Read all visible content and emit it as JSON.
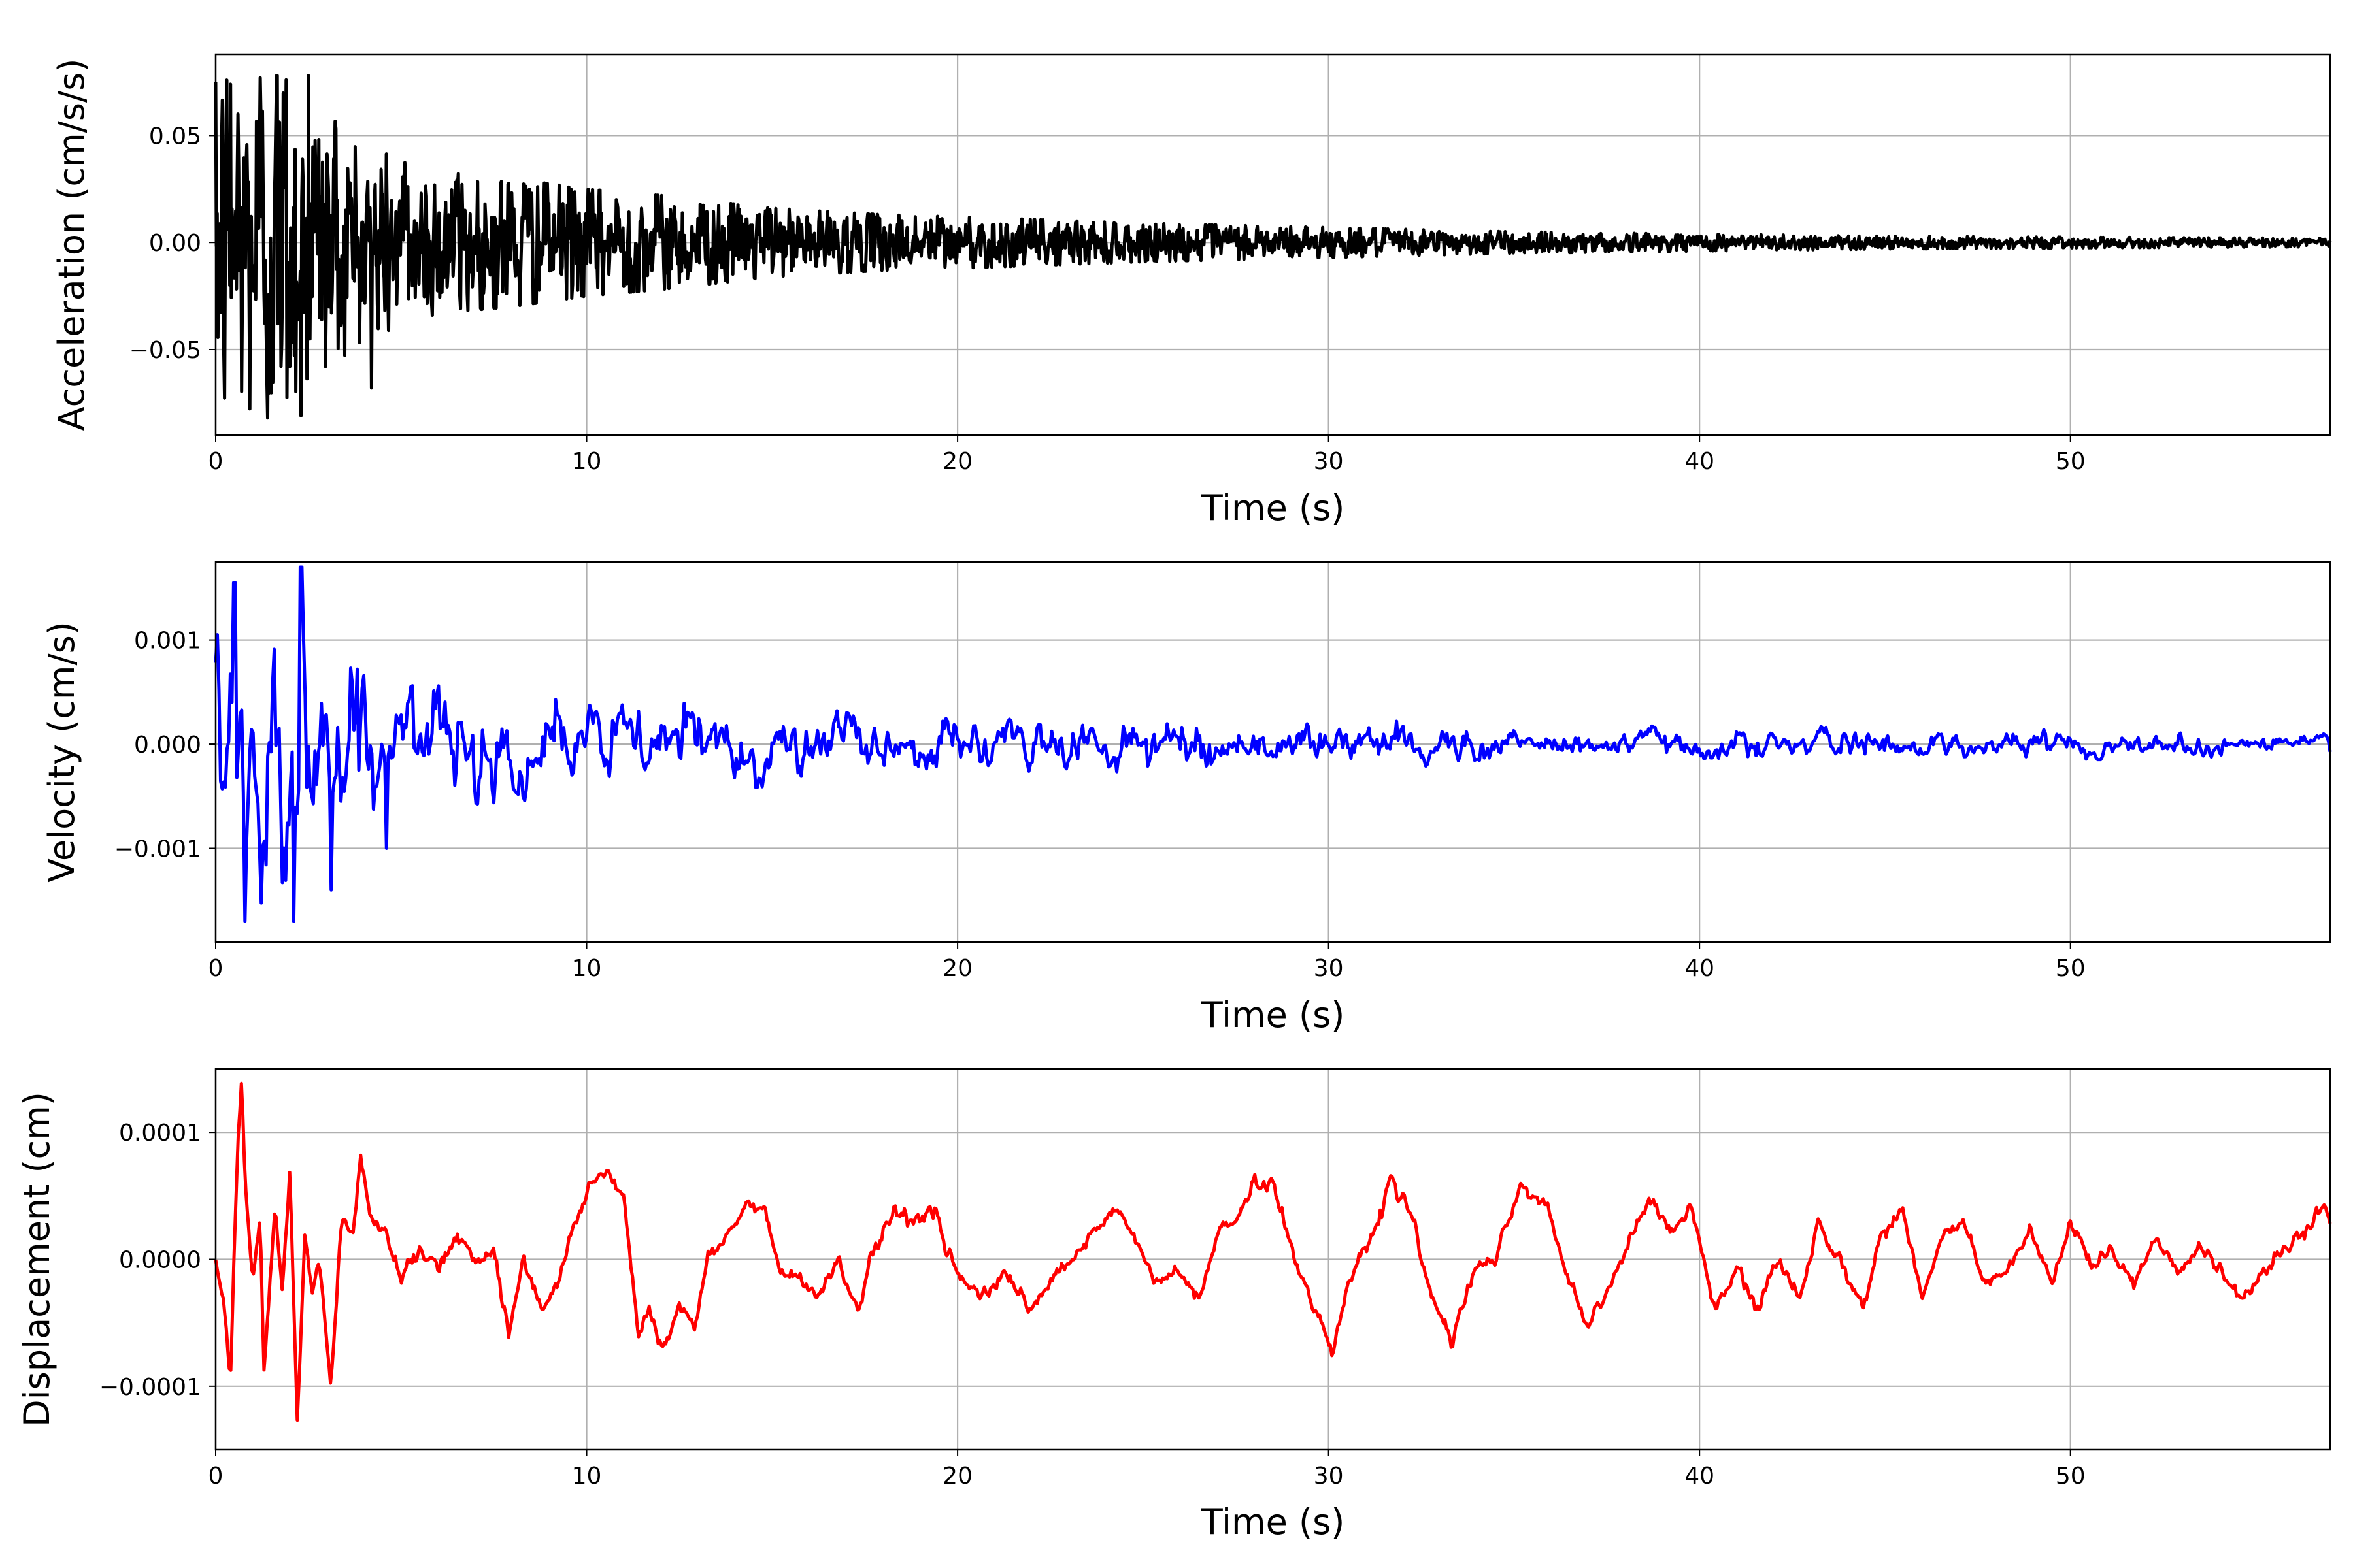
{
  "chart_data": [
    {
      "type": "line",
      "xlabel": "Time (s)",
      "ylabel": "Acceleration (cm/s/s)",
      "xlim": [
        0,
        57
      ],
      "ylim": [
        -0.09,
        0.088
      ],
      "xticks": [
        0,
        10,
        20,
        30,
        40,
        50
      ],
      "xtick_labels": [
        "0",
        "10",
        "20",
        "30",
        "40",
        "50"
      ],
      "yticks": [
        0.05,
        0.0,
        -0.05
      ],
      "ytick_labels": [
        "0.05",
        "0.00",
        "−0.05"
      ],
      "grid": true,
      "color": "#000000",
      "envelope": [
        [
          0,
          0.075
        ],
        [
          1,
          0.078
        ],
        [
          2,
          0.078
        ],
        [
          3,
          0.06
        ],
        [
          4,
          0.045
        ],
        [
          6,
          0.033
        ],
        [
          8,
          0.03
        ],
        [
          10,
          0.025
        ],
        [
          12,
          0.022
        ],
        [
          15,
          0.016
        ],
        [
          18,
          0.013
        ],
        [
          20,
          0.012
        ],
        [
          25,
          0.009
        ],
        [
          30,
          0.007
        ],
        [
          35,
          0.005
        ],
        [
          40,
          0.004
        ],
        [
          45,
          0.003
        ],
        [
          50,
          0.0025
        ],
        [
          57,
          0.002
        ]
      ],
      "notable_peaks": [
        [
          0.4,
          0.074
        ],
        [
          1.2,
          0.077
        ],
        [
          1.9,
          0.076
        ],
        [
          2.5,
          0.078
        ],
        [
          1.4,
          -0.082
        ],
        [
          2.3,
          -0.081
        ],
        [
          4.2,
          -0.068
        ]
      ]
    },
    {
      "type": "line",
      "xlabel": "Time (s)",
      "ylabel": "Velocity (cm/s)",
      "xlim": [
        0,
        57
      ],
      "ylim": [
        -0.0019,
        0.00175
      ],
      "xticks": [
        0,
        10,
        20,
        30,
        40,
        50
      ],
      "xtick_labels": [
        "0",
        "10",
        "20",
        "30",
        "40",
        "50"
      ],
      "yticks": [
        0.001,
        0.0,
        -0.001
      ],
      "ytick_labels": [
        "0.001",
        "0.000",
        "−0.001"
      ],
      "grid": true,
      "color": "#0000ff",
      "envelope": [
        [
          0,
          0.0016
        ],
        [
          1,
          0.0017
        ],
        [
          2,
          0.0017
        ],
        [
          3,
          0.0013
        ],
        [
          4,
          0.0009
        ],
        [
          6,
          0.0006
        ],
        [
          10,
          0.0005
        ],
        [
          12,
          0.0005
        ],
        [
          15,
          0.0004
        ],
        [
          20,
          0.0003
        ],
        [
          25,
          0.0003
        ],
        [
          30,
          0.00025
        ],
        [
          35,
          0.0002
        ],
        [
          40,
          0.00018
        ],
        [
          50,
          0.00015
        ],
        [
          57,
          0.00013
        ]
      ],
      "notable_peaks": [
        [
          0.5,
          0.00155
        ],
        [
          2.3,
          0.0017
        ],
        [
          0.8,
          -0.0017
        ],
        [
          2.1,
          -0.0017
        ],
        [
          3.1,
          -0.0014
        ],
        [
          4.6,
          -0.001
        ]
      ]
    },
    {
      "type": "line",
      "xlabel": "Time (s)",
      "ylabel": "Displacement (cm)",
      "xlim": [
        0,
        57
      ],
      "ylim": [
        -0.00015,
        0.00015
      ],
      "xticks": [
        0,
        10,
        20,
        30,
        40,
        50
      ],
      "xtick_labels": [
        "0",
        "10",
        "20",
        "30",
        "40",
        "50"
      ],
      "yticks": [
        0.0001,
        0.0,
        -0.0001
      ],
      "ytick_labels": [
        "0.0001",
        "0.0000",
        "−0.0001"
      ],
      "grid": true,
      "color": "#ff0000",
      "x": [
        0,
        0.2,
        0.4,
        0.5,
        0.6,
        0.7,
        0.8,
        1.0,
        1.2,
        1.3,
        1.5,
        1.6,
        1.8,
        2.0,
        2.2,
        2.4,
        2.6,
        2.8,
        3.1,
        3.4,
        3.7,
        3.9,
        4.2,
        4.6,
        5.0,
        5.5,
        6.0,
        6.5,
        7.0,
        7.5,
        7.9,
        8.3,
        8.8,
        9.3,
        9.7,
        10.1,
        10.6,
        11.0,
        11.4,
        11.7,
        12.0,
        12.5,
        12.9,
        13.3,
        13.8,
        14.3,
        14.8,
        15.2,
        15.7,
        16.2,
        16.8,
        17.3,
        17.8,
        18.3,
        18.8,
        19.3,
        19.7,
        20.2,
        20.8,
        21.3,
        21.9,
        22.5,
        23.1,
        23.7,
        24.3,
        24.9,
        25.4,
        25.9,
        26.5,
        27.0,
        27.5,
        28.0,
        28.5,
        29.0,
        29.6,
        30.1,
        30.6,
        31.2,
        31.7,
        32.2,
        32.7,
        33.3,
        33.9,
        34.5,
        35.2,
        35.9,
        36.5,
        37.0,
        37.6,
        38.2,
        38.7,
        39.3,
        39.8,
        40.4,
        41.0,
        41.6,
        42.1,
        42.7,
        43.2,
        43.8,
        44.4,
        44.9,
        45.5,
        46.0,
        46.6,
        47.1,
        47.7,
        48.3,
        48.9,
        49.5,
        50.0,
        50.6,
        51.1,
        51.7,
        52.3,
        52.9,
        53.5,
        54.0,
        54.6,
        55.2,
        55.8,
        56.3,
        56.8,
        57.0
      ],
      "y": [
        0.0,
        -3e-05,
        -9e-05,
        1e-05,
        0.0001,
        0.00014,
        5e-05,
        -2e-05,
        3e-05,
        -9e-05,
        0.0,
        4e-05,
        -3e-05,
        7e-05,
        -0.00013,
        2e-05,
        -3e-05,
        0.0,
        -0.0001,
        3e-05,
        2e-05,
        8e-05,
        3e-05,
        2e-05,
        -1e-05,
        1e-05,
        -1e-05,
        2e-05,
        0.0,
        1e-05,
        -6e-05,
        0.0,
        -4e-05,
        -1e-05,
        3e-05,
        6e-05,
        7e-05,
        5e-05,
        -6e-05,
        -4e-05,
        -7e-05,
        -4e-05,
        -5e-05,
        0.0,
        2e-05,
        4e-05,
        4e-05,
        -1e-05,
        -1e-05,
        -3e-05,
        0.0,
        -4e-05,
        1e-05,
        4e-05,
        3e-05,
        4e-05,
        1e-05,
        -2e-05,
        -3e-05,
        -1e-05,
        -4e-05,
        -2e-05,
        0.0,
        2e-05,
        4e-05,
        1e-05,
        -2e-05,
        -1e-05,
        -3e-05,
        2e-05,
        3e-05,
        6e-05,
        6e-05,
        1e-05,
        -4e-05,
        -7e-05,
        -1e-05,
        2e-05,
        6e-05,
        4e-05,
        -2e-05,
        -7e-05,
        -1e-05,
        0.0,
        6e-05,
        4e-05,
        -2e-05,
        -5e-05,
        -2e-05,
        2e-05,
        5e-05,
        2e-05,
        4e-05,
        -4e-05,
        -1e-05,
        -4e-05,
        0.0,
        -3e-05,
        3e-05,
        0.0,
        -4e-05,
        2e-05,
        4e-05,
        -3e-05,
        2e-05,
        3e-05,
        -2e-05,
        -1e-05,
        2e-05,
        -2e-05,
        3e-05,
        -1e-05,
        1e-05,
        -2e-05,
        2e-05,
        -1e-05,
        1e-05,
        -1e-05,
        -3e-05,
        -1e-05,
        1e-05,
        2e-05,
        4e-05,
        3e-05
      ]
    }
  ]
}
